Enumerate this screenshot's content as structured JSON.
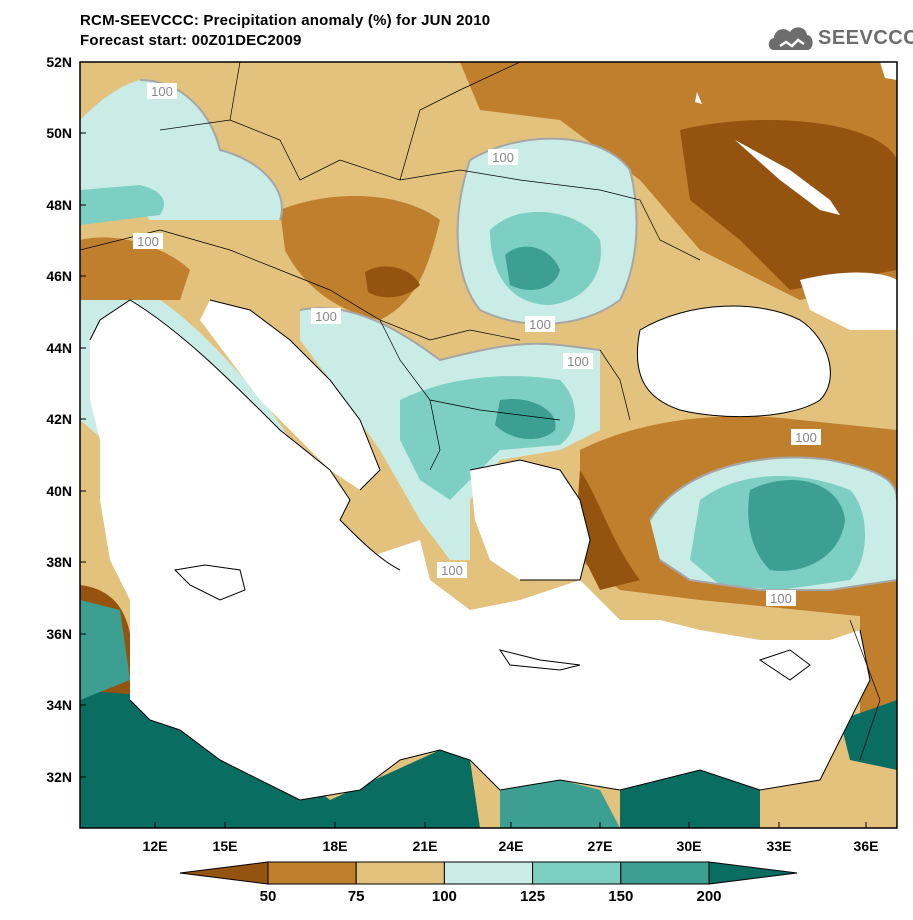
{
  "title": "RCM-SEEVCCC: Precipitation anomaly (%) for JUN 2010",
  "subtitle": "Forecast start: 00Z01DEC2009",
  "logo_text": "SEEVCCC",
  "map": {
    "lat_labels": [
      "52N",
      "50N",
      "48N",
      "46N",
      "44N",
      "42N",
      "40N",
      "38N",
      "36N",
      "34N",
      "32N"
    ],
    "lon_labels": [
      "12E",
      "15E",
      "18E",
      "21E",
      "24E",
      "27E",
      "30E",
      "33E",
      "36E"
    ],
    "contour_label": "100"
  },
  "colorbar": {
    "levels": [
      "50",
      "75",
      "100",
      "125",
      "150",
      "200"
    ],
    "colors": [
      "#94540f",
      "#c07f2c",
      "#e2c27d",
      "#c9ece6",
      "#7ccfc2",
      "#3c9f91",
      "#0a6d61"
    ]
  }
}
